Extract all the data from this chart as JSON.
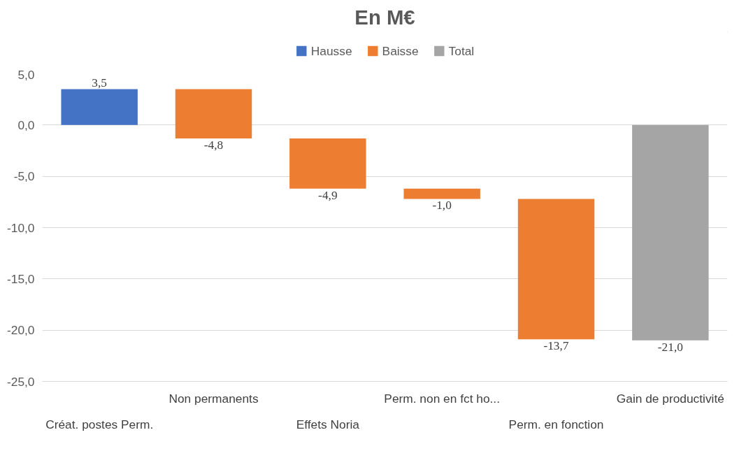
{
  "chart_data": {
    "type": "bar",
    "title": "En M€",
    "categories": [
      "Créat. postes Perm.",
      "Non permanents",
      "Effets Noria",
      "Perm. non en fct ho...",
      "Perm. en fonction",
      "Gain de productivité"
    ],
    "series": [
      {
        "name": "Hausse",
        "color": "#4472c4",
        "values": [
          3.5,
          null,
          null,
          null,
          null,
          null
        ],
        "base": [
          0,
          null,
          null,
          null,
          null,
          null
        ]
      },
      {
        "name": "Baisse",
        "color": "#ed7d31",
        "values": [
          null,
          -4.8,
          -4.9,
          -1.0,
          -13.7,
          null
        ],
        "base": [
          null,
          3.5,
          -1.3,
          -6.2,
          -7.2,
          null
        ]
      },
      {
        "name": "Total",
        "color": "#a5a5a5",
        "values": [
          null,
          null,
          null,
          null,
          null,
          -21.0
        ],
        "base": [
          null,
          null,
          null,
          null,
          null,
          0
        ]
      }
    ],
    "value_labels": [
      "3,5",
      "-4,8",
      "-4,9",
      "-1,0",
      "-13,7",
      "-21,0"
    ],
    "ylim": [
      -25,
      5
    ],
    "yticks": [
      {
        "value": 5,
        "label": "5,0"
      },
      {
        "value": 0,
        "label": "0,0"
      },
      {
        "value": -5,
        "label": "-5,0"
      },
      {
        "value": -10,
        "label": "-10,0"
      },
      {
        "value": -15,
        "label": "-15,0"
      },
      {
        "value": -20,
        "label": "-20,0"
      },
      {
        "value": -25,
        "label": "-25,0"
      }
    ],
    "grid": "y",
    "legend": "top"
  }
}
